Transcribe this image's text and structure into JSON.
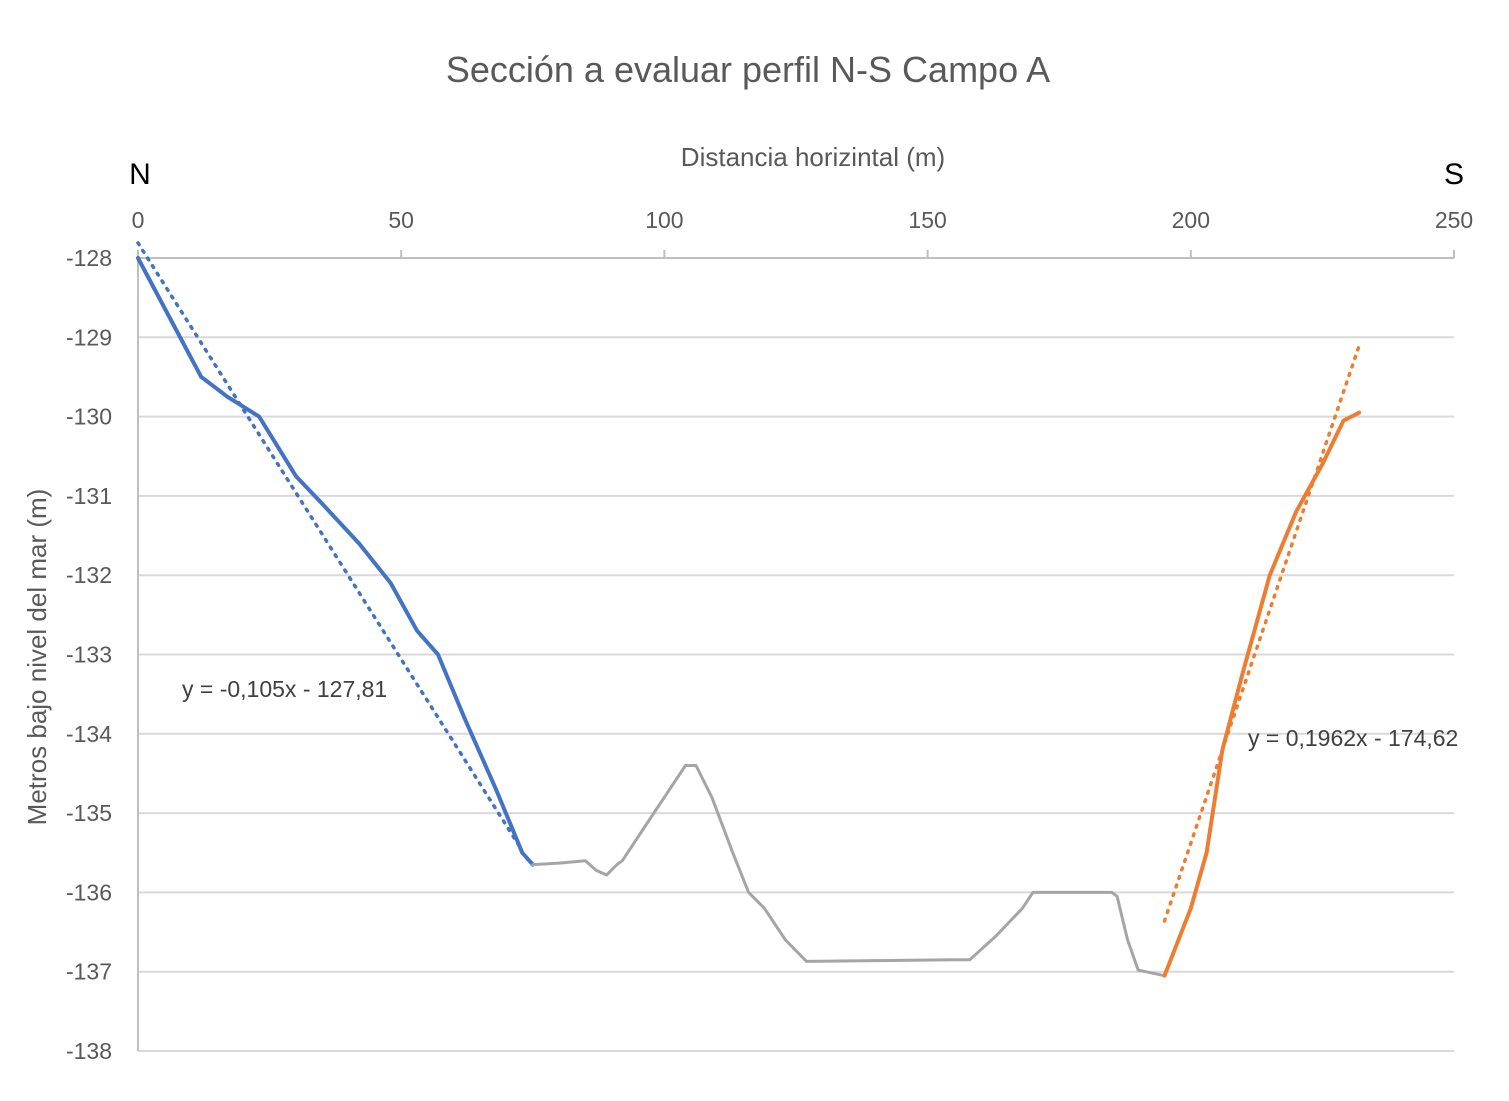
{
  "chart_data": {
    "type": "line",
    "title": "Sección a evaluar perfil N-S Campo A",
    "xlabel": "Distancia horizintal (m)",
    "ylabel": "Metros bajo nivel del mar (m)",
    "xlim": [
      0,
      250
    ],
    "ylim": [
      -138,
      -128
    ],
    "x_axis_position": "top",
    "x_ticks": [
      0,
      50,
      100,
      150,
      200,
      250
    ],
    "y_ticks": [
      -128,
      -129,
      -130,
      -131,
      -132,
      -133,
      -134,
      -135,
      -136,
      -137,
      -138
    ],
    "grid": "horizontal",
    "direction_labels": {
      "left": "N",
      "right": "S"
    },
    "series": [
      {
        "color": "#4472c4",
        "points": [
          [
            0,
            -128.0
          ],
          [
            6,
            -128.75
          ],
          [
            12,
            -129.5
          ],
          [
            17,
            -129.75
          ],
          [
            23,
            -130.0
          ],
          [
            30,
            -130.75
          ],
          [
            35,
            -131.1
          ],
          [
            42,
            -131.6
          ],
          [
            48,
            -132.1
          ],
          [
            53,
            -132.7
          ],
          [
            57,
            -133.0
          ],
          [
            62,
            -133.8
          ],
          [
            68,
            -134.7
          ],
          [
            73,
            -135.5
          ],
          [
            75,
            -135.65
          ]
        ]
      },
      {
        "color": "#a5a5a5",
        "points": [
          [
            75,
            -135.65
          ],
          [
            80,
            -135.63
          ],
          [
            85,
            -135.6
          ],
          [
            87,
            -135.72
          ],
          [
            89,
            -135.78
          ],
          [
            91,
            -135.65
          ],
          [
            92,
            -135.6
          ],
          [
            96,
            -135.2
          ],
          [
            100,
            -134.8
          ],
          [
            104,
            -134.4
          ],
          [
            106,
            -134.4
          ],
          [
            109,
            -134.8
          ],
          [
            113,
            -135.5
          ],
          [
            116,
            -136.0
          ],
          [
            119,
            -136.2
          ],
          [
            123,
            -136.6
          ],
          [
            127,
            -136.87
          ],
          [
            140,
            -136.86
          ],
          [
            155,
            -136.85
          ],
          [
            158,
            -136.85
          ],
          [
            163,
            -136.55
          ],
          [
            168,
            -136.2
          ],
          [
            170,
            -136.0
          ],
          [
            178,
            -136.0
          ],
          [
            185,
            -136.0
          ],
          [
            186,
            -136.05
          ],
          [
            188,
            -136.6
          ],
          [
            190,
            -136.98
          ],
          [
            195,
            -137.05
          ]
        ]
      },
      {
        "color": "#ed7d31",
        "points": [
          [
            195,
            -137.05
          ],
          [
            200,
            -136.2
          ],
          [
            203,
            -135.5
          ],
          [
            206,
            -134.2
          ],
          [
            210,
            -133.2
          ],
          [
            215,
            -132.0
          ],
          [
            220,
            -131.2
          ],
          [
            225,
            -130.6
          ],
          [
            229,
            -130.05
          ],
          [
            232,
            -129.95
          ]
        ]
      }
    ],
    "trendlines": [
      {
        "series_index": 0,
        "color": "#4472c4",
        "style": "dotted",
        "equation": "y = -0,105x - 127,81",
        "slope": -0.105,
        "intercept": -127.81,
        "x_range": [
          0,
          73
        ]
      },
      {
        "series_index": 2,
        "color": "#ed7d31",
        "style": "dotted",
        "equation": "y = 0,1962x - 174,62",
        "slope": 0.1962,
        "intercept": -174.62,
        "x_range": [
          195,
          232
        ]
      }
    ]
  }
}
